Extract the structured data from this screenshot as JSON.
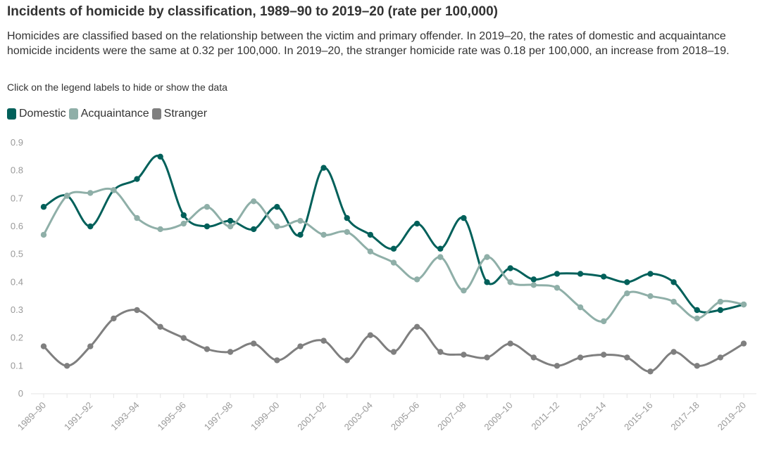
{
  "header": {
    "title": "Incidents of homicide by classification, 1989–90 to 2019–20 (rate per 100,000)",
    "description": "Homicides are classified based on the relationship between the victim and primary offender. In 2019–20, the rates of domestic and acquaintance homicide incidents were the same at 0.32 per 100,000. In 2019–20, the stranger homicide rate was 0.18 per 100,000, an increase from 2018–19.",
    "hint": "Click on the legend labels to hide or show the data"
  },
  "chart_data": {
    "type": "line",
    "x": [
      "1989–90",
      "1990–91",
      "1991–92",
      "1992–93",
      "1993–94",
      "1994–95",
      "1995–96",
      "1996–97",
      "1997–98",
      "1998–99",
      "1999–00",
      "2000–01",
      "2001–02",
      "2002–03",
      "2003–04",
      "2004–05",
      "2005–06",
      "2006–07",
      "2007–08",
      "2008–09",
      "2009–10",
      "2010–11",
      "2011–12",
      "2012–13",
      "2013–14",
      "2014–15",
      "2015–16",
      "2016–17",
      "2017–18",
      "2018–19",
      "2019–20"
    ],
    "xtick_labels": [
      "1989–90",
      "",
      "1991–92",
      "",
      "1993–94",
      "",
      "1995–96",
      "",
      "1997–98",
      "",
      "1999–00",
      "",
      "2001–02",
      "",
      "2003–04",
      "",
      "2005–06",
      "",
      "2007–08",
      "",
      "2009–10",
      "",
      "2011–12",
      "",
      "2013–14",
      "",
      "2015–16",
      "",
      "2017–18",
      "",
      "2019–20"
    ],
    "ylim": [
      0,
      0.9
    ],
    "yticks": [
      "0",
      "0.1",
      "0.2",
      "0.3",
      "0.4",
      "0.5",
      "0.6",
      "0.7",
      "0.8",
      "0.9"
    ],
    "grid": false,
    "legend_position": "top-left",
    "series": [
      {
        "name": "Domestic",
        "color": "#00605a",
        "values": [
          0.67,
          0.71,
          0.6,
          0.73,
          0.77,
          0.85,
          0.64,
          0.6,
          0.62,
          0.59,
          0.67,
          0.57,
          0.81,
          0.63,
          0.57,
          0.52,
          0.61,
          0.52,
          0.63,
          0.4,
          0.45,
          0.41,
          0.43,
          0.43,
          0.42,
          0.4,
          0.43,
          0.4,
          0.3,
          0.3,
          0.32
        ]
      },
      {
        "name": "Acquaintance",
        "color": "#8fafa8",
        "values": [
          0.57,
          0.71,
          0.72,
          0.73,
          0.63,
          0.59,
          0.61,
          0.67,
          0.6,
          0.69,
          0.6,
          0.62,
          0.57,
          0.58,
          0.51,
          0.47,
          0.41,
          0.49,
          0.37,
          0.49,
          0.4,
          0.39,
          0.38,
          0.31,
          0.26,
          0.36,
          0.35,
          0.33,
          0.27,
          0.33,
          0.32
        ]
      },
      {
        "name": "Stranger",
        "color": "#7f7f7f",
        "values": [
          0.17,
          0.1,
          0.17,
          0.27,
          0.3,
          0.24,
          0.2,
          0.16,
          0.15,
          0.18,
          0.12,
          0.17,
          0.19,
          0.12,
          0.21,
          0.15,
          0.24,
          0.15,
          0.14,
          0.13,
          0.18,
          0.13,
          0.1,
          0.13,
          0.14,
          0.13,
          0.08,
          0.15,
          0.1,
          0.13,
          0.18
        ]
      }
    ]
  }
}
